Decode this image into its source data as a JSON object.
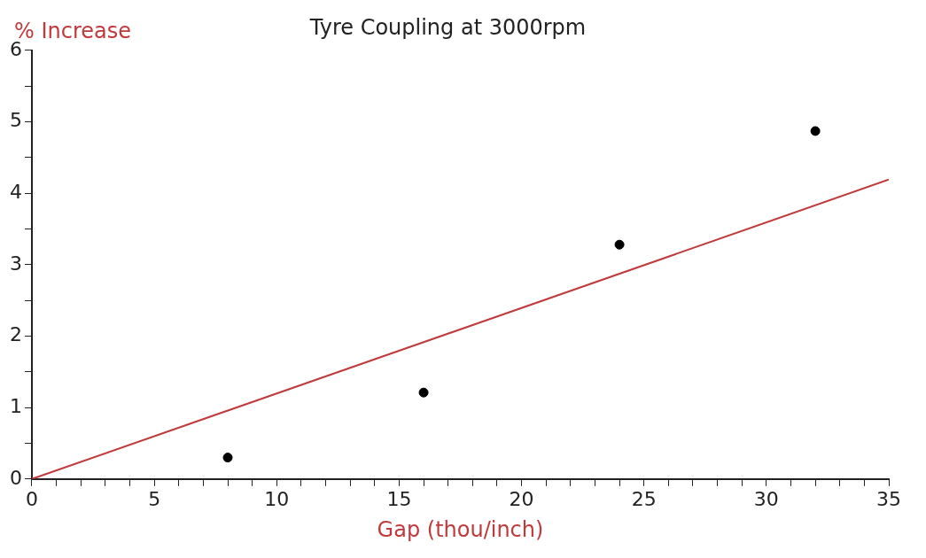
{
  "chart_data": {
    "type": "scatter",
    "title": "Tyre Coupling at 3000rpm",
    "xlabel": "Gap (thou/inch)",
    "ylabel": "% Increase",
    "xlim": [
      0,
      35
    ],
    "xticks": [
      0,
      {
        "value": 1,
        "label": null
      },
      {
        "value": 2,
        "label": null
      },
      {
        "value": 3,
        "label": null
      },
      {
        "value": 4,
        "label": null
      },
      5,
      {
        "value": 6,
        "label": null
      },
      {
        "value": 7,
        "label": null
      },
      {
        "value": 8,
        "label": null
      },
      {
        "value": 9,
        "label": null
      },
      10,
      {
        "value": 11,
        "label": null
      },
      {
        "value": 12,
        "label": null
      },
      {
        "value": 13,
        "label": null
      },
      {
        "value": 14,
        "label": null
      },
      15,
      {
        "value": 16,
        "label": null
      },
      {
        "value": 17,
        "label": null
      },
      {
        "value": 18,
        "label": null
      },
      {
        "value": 19,
        "label": null
      },
      20,
      {
        "value": 21,
        "label": null
      },
      {
        "value": 22,
        "label": null
      },
      {
        "value": 23,
        "label": null
      },
      {
        "value": 24,
        "label": null
      },
      25,
      {
        "value": 26,
        "label": null
      },
      {
        "value": 27,
        "label": null
      },
      {
        "value": 28,
        "label": null
      },
      {
        "value": 29,
        "label": null
      },
      30,
      {
        "value": 31,
        "label": null
      },
      {
        "value": 32,
        "label": null
      },
      {
        "value": 33,
        "label": null
      },
      {
        "value": 34,
        "label": null
      },
      35
    ],
    "ylim": [
      0,
      6
    ],
    "yticks": [
      0,
      {
        "value": 0.5,
        "label": null
      },
      1,
      {
        "value": 1.5,
        "label": null
      },
      2,
      {
        "value": 2.5,
        "label": null
      },
      3,
      {
        "value": 3.5,
        "label": null
      },
      4,
      {
        "value": 4.5,
        "label": null
      },
      5,
      {
        "value": 5.5,
        "label": null
      },
      6
    ],
    "grid": false,
    "legend": false,
    "marker": "circle",
    "series": [
      {
        "color": "#000000",
        "x": [
          8,
          16,
          24,
          32
        ],
        "values": [
          0.3,
          1.21,
          3.28,
          4.87
        ]
      },
      {
        "type": "line",
        "color": "#c0393b",
        "x": [
          0,
          35
        ],
        "values": [
          0,
          4.19
        ],
        "marker": "none"
      }
    ]
  }
}
